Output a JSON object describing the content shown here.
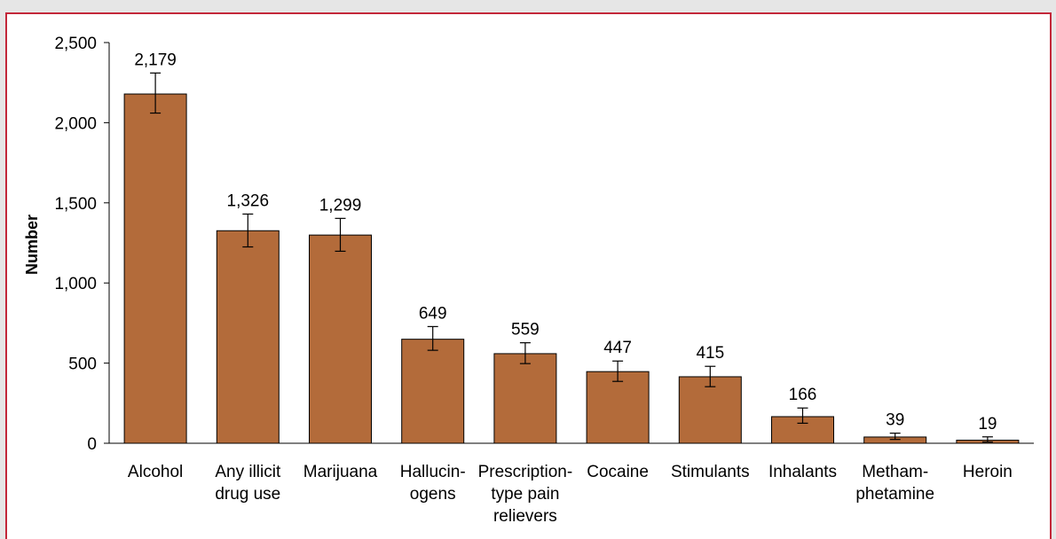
{
  "colors": {
    "bar_fill": "#b36b3a",
    "bar_stroke": "#000000",
    "frame_border": "#c3283a",
    "background": "#e6e6e6"
  },
  "chart_data": {
    "type": "bar",
    "title": "",
    "xlabel": "",
    "ylabel": "Number",
    "ylim": [
      0,
      2500
    ],
    "yticks": [
      0,
      500,
      1000,
      1500,
      2000,
      2500
    ],
    "ytick_labels": [
      "0",
      "500",
      "1,000",
      "1,500",
      "2,000",
      "2,500"
    ],
    "grid": false,
    "legend": "none",
    "categories": [
      [
        "Alcohol"
      ],
      [
        "Any illicit",
        "drug use"
      ],
      [
        "Marijuana"
      ],
      [
        "Hallucin-",
        "ogens"
      ],
      [
        "Prescription-",
        "type pain",
        "relievers"
      ],
      [
        "Cocaine"
      ],
      [
        "Stimulants"
      ],
      [
        "Inhalants"
      ],
      [
        "Metham-",
        "phetamine"
      ],
      [
        "Heroin"
      ]
    ],
    "values": [
      2179,
      1326,
      1299,
      649,
      559,
      447,
      415,
      166,
      39,
      19
    ],
    "value_labels": [
      "2,179",
      "1,326",
      "1,299",
      "649",
      "559",
      "447",
      "415",
      "166",
      "39",
      "19"
    ],
    "error_low": [
      2060,
      1225,
      1198,
      580,
      497,
      386,
      353,
      125,
      24,
      8
    ],
    "error_high": [
      2310,
      1430,
      1403,
      728,
      627,
      513,
      480,
      220,
      63,
      40
    ]
  }
}
